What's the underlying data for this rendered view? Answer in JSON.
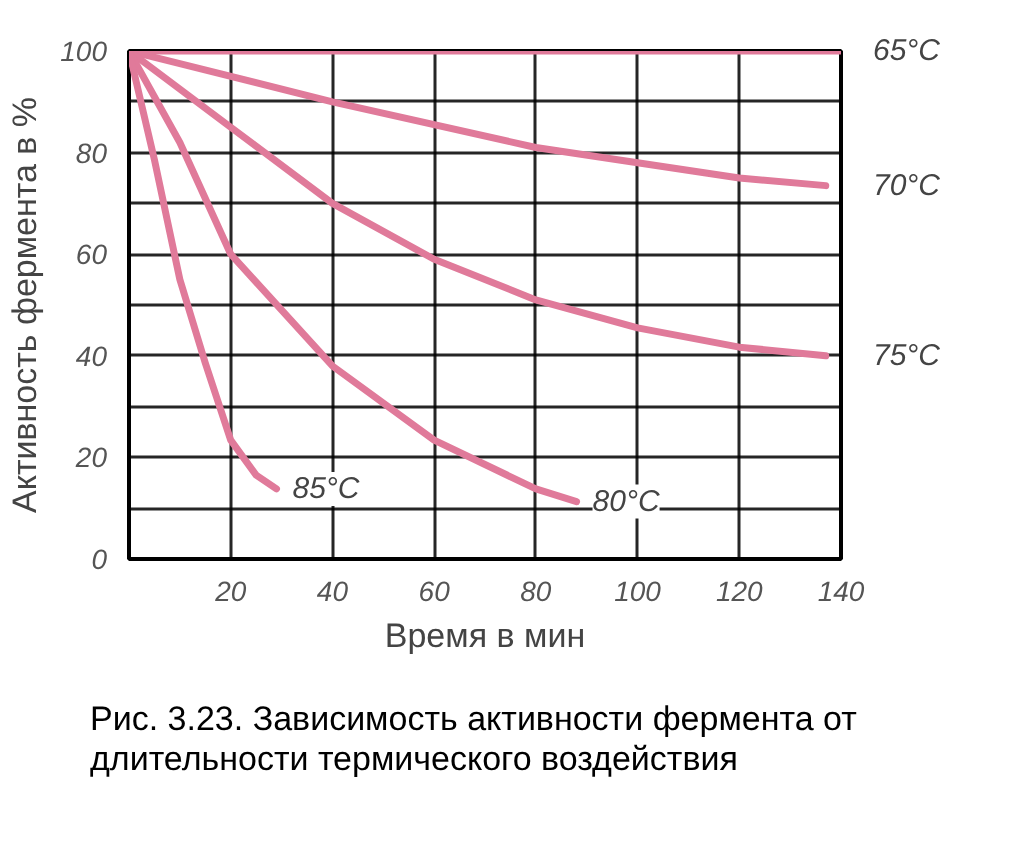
{
  "chart_data": {
    "type": "line",
    "xlabel": "Время в мин",
    "ylabel": "Активность фермента в %",
    "annotations": [
      "Рис. 3.23. Зависимость активности фермента от длительности термического воздействия"
    ],
    "xlim": [
      0,
      140
    ],
    "ylim": [
      0,
      100
    ],
    "xticks": [
      20,
      40,
      60,
      80,
      100,
      120,
      140
    ],
    "yticks": [
      0,
      {
        "value": 10,
        "label": null
      },
      20,
      {
        "value": 30,
        "label": null
      },
      40,
      {
        "value": 50,
        "label": null
      },
      60,
      {
        "value": 70,
        "label": null
      },
      80,
      {
        "value": 90,
        "label": null
      },
      100
    ],
    "grid": true,
    "marker": "none",
    "line_style": "solid",
    "series": [
      {
        "name": "65°C",
        "color": "#e07a9a",
        "x": [
          0,
          140
        ],
        "values": [
          100,
          100
        ]
      },
      {
        "name": "70°C",
        "color": "#e07a9a",
        "x": [
          0,
          40,
          80,
          120,
          137
        ],
        "values": [
          100,
          90,
          81,
          75,
          73.5
        ]
      },
      {
        "name": "75°C",
        "color": "#e07a9a",
        "x": [
          0,
          20,
          40,
          60,
          80,
          100,
          120,
          137
        ],
        "values": [
          100,
          85,
          70,
          59,
          51,
          45.5,
          41.7,
          40
        ]
      },
      {
        "name": "80°C",
        "color": "#e07a9a",
        "x": [
          0,
          10,
          20,
          40,
          60,
          80,
          88
        ],
        "values": [
          100,
          82,
          60,
          38,
          23.4,
          13.8,
          11.3
        ]
      },
      {
        "name": "85°C",
        "color": "#e07a9a",
        "x": [
          0,
          5,
          10,
          15,
          20,
          25,
          29
        ],
        "values": [
          100,
          78.6,
          55,
          38.6,
          23.4,
          16.5,
          13.8
        ]
      }
    ]
  }
}
